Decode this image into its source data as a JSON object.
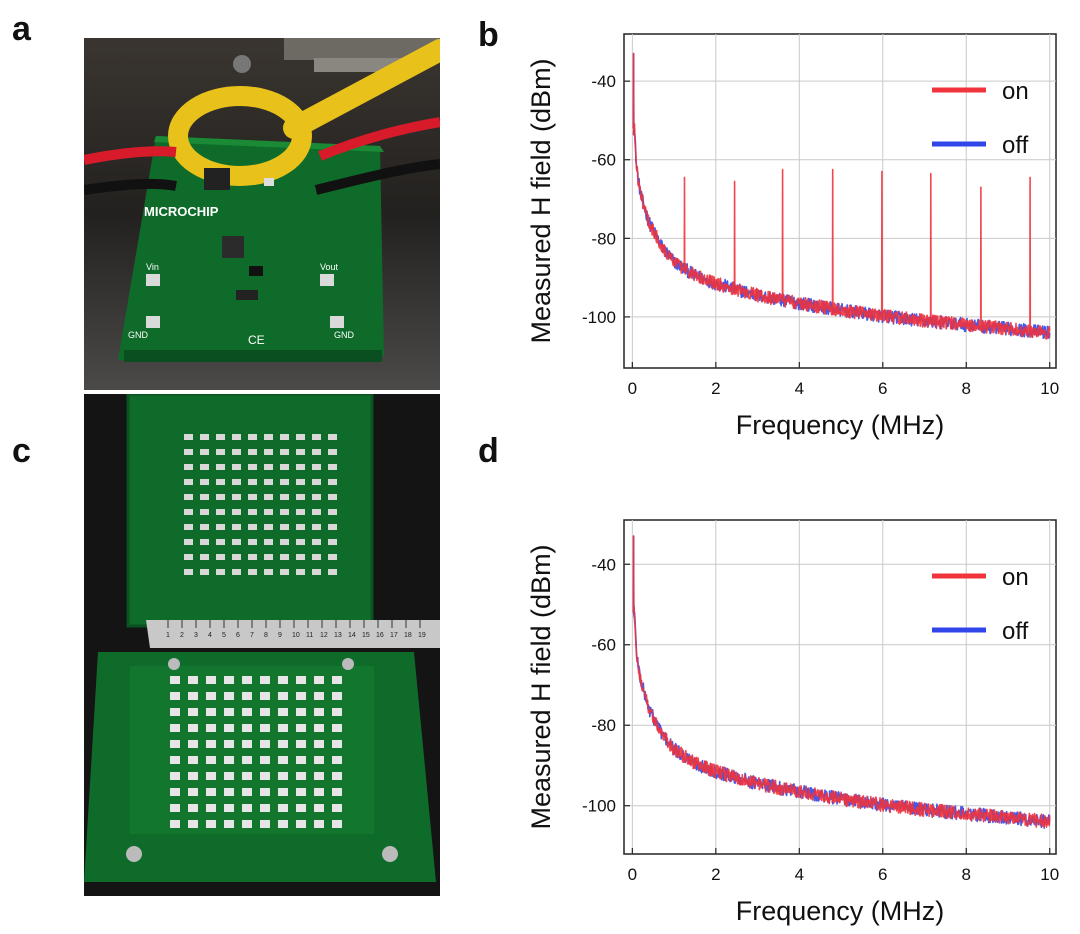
{
  "panels": {
    "a": "a",
    "b": "b",
    "c": "c",
    "d": "d"
  },
  "photo_a": {
    "description_hidden": false,
    "board_logo": "MICROCHIP",
    "labels": [
      "Vin",
      "Vout",
      "GND",
      "GND",
      "CE"
    ]
  },
  "photo_c": {
    "ruler_ticks": [
      "1",
      "2",
      "3",
      "4",
      "5",
      "6",
      "7",
      "8",
      "9",
      "10",
      "11",
      "12",
      "13",
      "14",
      "15",
      "16",
      "17",
      "18",
      "19"
    ]
  },
  "colors": {
    "on": "#f0333c",
    "off": "#3046e8",
    "board": "#0f6b2a",
    "board_light": "#1a8a36",
    "coil": "#e8c11a"
  },
  "chart_data": [
    {
      "type": "line",
      "panel": "b",
      "title": "",
      "xlabel": "Frequency (MHz)",
      "ylabel": "Measured H field (dBm)",
      "xlim": [
        -0.2,
        10.15
      ],
      "ylim": [
        -113,
        -28
      ],
      "xticks": [
        0,
        2,
        4,
        6,
        8,
        10
      ],
      "yticks": [
        -40,
        -60,
        -80,
        -100
      ],
      "grid": true,
      "legend": "top-right",
      "series": [
        {
          "name": "on",
          "color_key": "on",
          "spikes": [
            [
              0.03,
              -33
            ],
            [
              1.25,
              -64.5
            ],
            [
              2.45,
              -65.5
            ],
            [
              3.6,
              -62.5
            ],
            [
              4.8,
              -62.5
            ],
            [
              5.98,
              -63
            ],
            [
              7.15,
              -63.5
            ],
            [
              8.35,
              -67
            ],
            [
              9.53,
              -64.5
            ]
          ]
        },
        {
          "name": "off",
          "color_key": "off",
          "spikes": [
            [
              0.03,
              -33
            ]
          ]
        }
      ],
      "baseline": {
        "x": [
          0.05,
          0.1,
          0.2,
          0.4,
          0.7,
          1.0,
          1.5,
          2.0,
          3.0,
          4.0,
          5.0,
          6.0,
          7.0,
          8.0,
          9.0,
          10.0
        ],
        "y": [
          -52,
          -62,
          -69,
          -76,
          -82,
          -86,
          -89.5,
          -91.5,
          -94.5,
          -96.5,
          -98.3,
          -99.8,
          -101,
          -102,
          -103,
          -104
        ]
      }
    },
    {
      "type": "line",
      "panel": "d",
      "title": "",
      "xlabel": "Frequency (MHz)",
      "ylabel": "Measured H field (dBm)",
      "xlim": [
        -0.2,
        10.15
      ],
      "ylim": [
        -112,
        -29
      ],
      "xticks": [
        0,
        2,
        4,
        6,
        8,
        10
      ],
      "yticks": [
        -40,
        -60,
        -80,
        -100
      ],
      "grid": true,
      "legend": "top-right",
      "series": [
        {
          "name": "on",
          "color_key": "on",
          "spikes": [
            [
              0.03,
              -33
            ]
          ]
        },
        {
          "name": "off",
          "color_key": "off",
          "spikes": [
            [
              0.03,
              -33
            ]
          ]
        }
      ],
      "baseline": {
        "x": [
          0.05,
          0.1,
          0.2,
          0.4,
          0.7,
          1.0,
          1.5,
          2.0,
          3.0,
          4.0,
          5.0,
          6.0,
          7.0,
          8.0,
          9.0,
          10.0
        ],
        "y": [
          -52,
          -62,
          -69,
          -76,
          -82,
          -86,
          -89.5,
          -91.5,
          -94.5,
          -96.5,
          -98.3,
          -99.8,
          -101,
          -102,
          -103,
          -104
        ]
      }
    }
  ]
}
